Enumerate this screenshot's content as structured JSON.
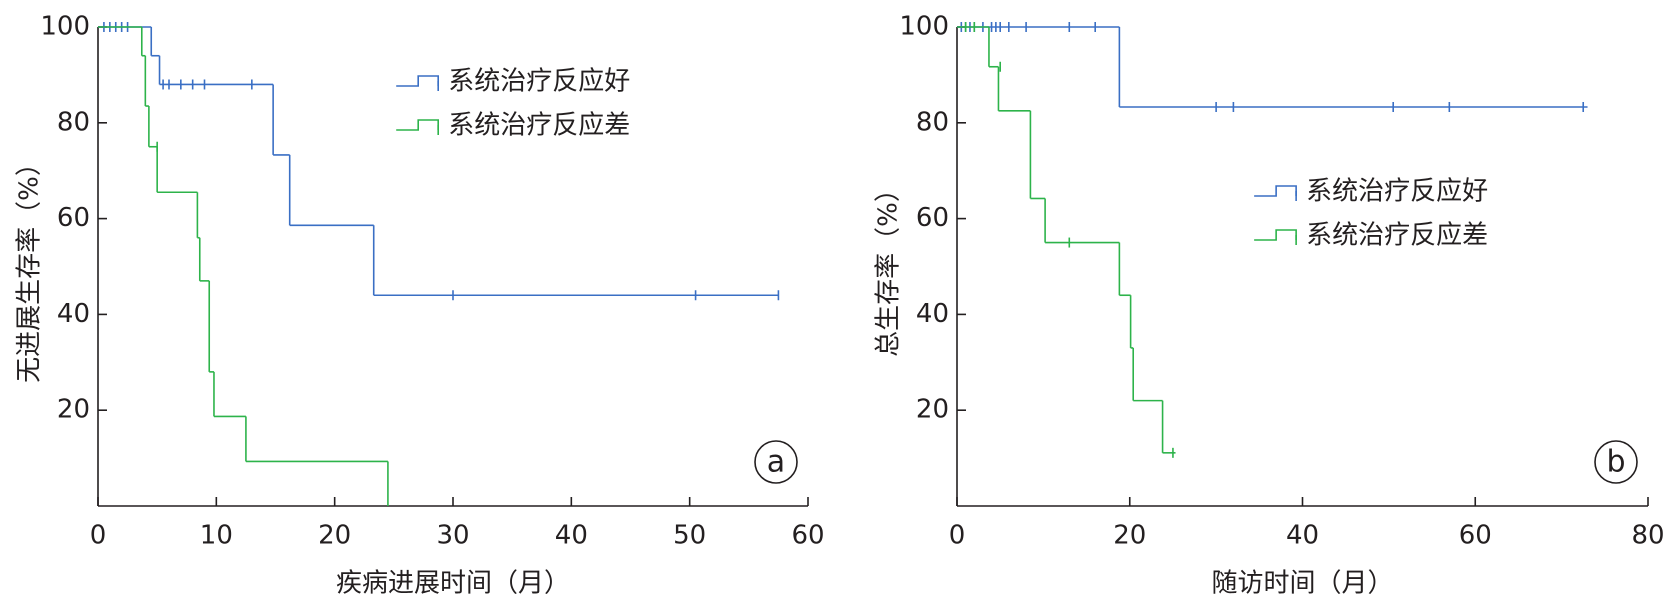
{
  "chart_data": [
    {
      "type": "step",
      "panel_label": "a",
      "xlabel": "疾病进展时间（月）",
      "ylabel": "无进展生存率（%）",
      "xlim": [
        0,
        60
      ],
      "ylim": [
        0,
        100
      ],
      "xticks": [
        0,
        10,
        20,
        30,
        40,
        50,
        60
      ],
      "yticks": [
        20,
        40,
        60,
        80,
        100
      ],
      "legend_position": "top-center",
      "series": [
        {
          "name": "系统治疗反应好",
          "color": "#3a6fc4",
          "x": [
            0,
            4.5,
            5.2,
            14.8,
            16.2,
            23.3,
            57.5
          ],
          "values": [
            100,
            94,
            88,
            73.3,
            58.6,
            44,
            44
          ],
          "censor_x": [
            0.5,
            1,
            1.5,
            2,
            2.5,
            5.5,
            6,
            7,
            8,
            9,
            13,
            30,
            50.5,
            57.5
          ],
          "censor_values": [
            100,
            100,
            100,
            100,
            100,
            88,
            88,
            88,
            88,
            88,
            88,
            44,
            44,
            44
          ]
        },
        {
          "name": "系统治疗反应差",
          "color": "#2db34a",
          "x": [
            0,
            3.7,
            4.0,
            4.3,
            5.0,
            8.4,
            8.6,
            9.4,
            9.8,
            12.5,
            24.5
          ],
          "values": [
            100,
            94,
            83.5,
            75,
            65.5,
            56,
            47,
            28,
            18.7,
            9.3,
            0
          ],
          "censor_x": [
            5
          ],
          "censor_values": [
            75
          ]
        }
      ]
    },
    {
      "type": "step",
      "panel_label": "b",
      "xlabel": "随访时间（月）",
      "ylabel": "总生存率（%）",
      "xlim": [
        0,
        80
      ],
      "ylim": [
        0,
        100
      ],
      "xticks": [
        0,
        20,
        40,
        60,
        80
      ],
      "yticks": [
        20,
        40,
        60,
        80,
        100
      ],
      "legend_position": "center-right",
      "series": [
        {
          "name": "系统治疗反应好",
          "color": "#3a6fc4",
          "x": [
            0,
            18.8,
            73
          ],
          "values": [
            100,
            83.3,
            83.3
          ],
          "censor_x": [
            0.5,
            1,
            1.5,
            2,
            3,
            4,
            4.5,
            5,
            6,
            8,
            13,
            16,
            30,
            32,
            50.5,
            57,
            72.5
          ],
          "censor_values": [
            100,
            100,
            100,
            100,
            100,
            100,
            100,
            100,
            100,
            100,
            100,
            100,
            83.3,
            83.3,
            83.3,
            83.3,
            83.3
          ]
        },
        {
          "name": "系统治疗反应差",
          "color": "#2db34a",
          "x": [
            0,
            3.7,
            4.8,
            8.5,
            10.2,
            18.8,
            20.1,
            20.4,
            23.8,
            25.3
          ],
          "values": [
            100,
            91.7,
            82.5,
            64.2,
            55,
            44,
            33,
            22,
            11.1,
            11.1
          ],
          "censor_x": [
            1,
            2,
            5,
            13,
            25
          ],
          "censor_values": [
            100,
            100,
            91.7,
            55,
            11.1
          ]
        }
      ]
    }
  ]
}
